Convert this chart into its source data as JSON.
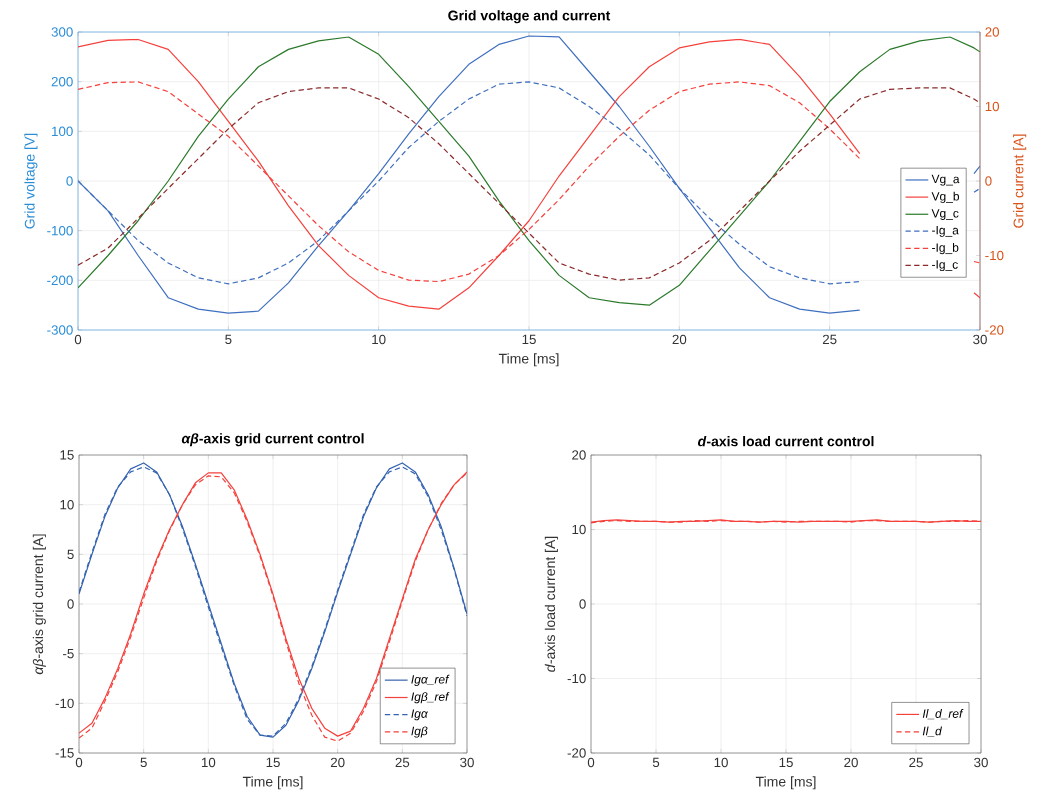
{
  "chart_data": [
    {
      "type": "line",
      "title": "Grid voltage and current",
      "xlabel": "Time [ms]",
      "ylabel": "Grid voltage [V]",
      "y2label": "Grid current [A]",
      "x": [
        0,
        1,
        2,
        3,
        4,
        5,
        6,
        7,
        8,
        9,
        10,
        11,
        12,
        13,
        14,
        15,
        16,
        17,
        18,
        19,
        20,
        21,
        22,
        23,
        24,
        25,
        26,
        27,
        28,
        29,
        29.8,
        30
      ],
      "series": [
        {
          "name": "Vg_a",
          "color": "#3f6fbf",
          "values": [
            0,
            -60,
            -150,
            -235,
            -258,
            -266,
            -262,
            -205,
            -130,
            -60,
            15,
            95,
            170,
            235,
            275,
            292,
            290,
            220,
            150,
            70,
            -15,
            -95,
            -175,
            -235,
            -258,
            -266,
            -260,
            null,
            null,
            null,
            15,
            30
          ]
        },
        {
          "name": "Vg_b",
          "color": "#f5413c",
          "values": [
            270,
            283,
            285,
            265,
            200,
            120,
            40,
            -50,
            -130,
            -190,
            -235,
            -252,
            -258,
            -215,
            -150,
            -80,
            10,
            90,
            170,
            230,
            268,
            280,
            285,
            275,
            210,
            135,
            55,
            null,
            null,
            null,
            -225,
            -235
          ]
        },
        {
          "name": "Vg_c",
          "color": "#2b7a2b",
          "values": [
            -215,
            -150,
            -80,
            0,
            90,
            165,
            230,
            265,
            282,
            290,
            255,
            190,
            120,
            50,
            -40,
            -120,
            -190,
            -235,
            -245,
            -250,
            -210,
            -140,
            -70,
            0,
            80,
            160,
            220,
            265,
            282,
            290,
            268,
            260
          ]
        },
        {
          "name": "-Ig_a",
          "color": "#3f6fbf",
          "line_style": "dashed",
          "axis": "y2",
          "values": [
            0,
            -4,
            -8,
            -11,
            -13,
            -13.8,
            -13,
            -11,
            -8,
            -4,
            0,
            4.5,
            8,
            11,
            13,
            13.3,
            12.5,
            10,
            7,
            3.5,
            -1,
            -5,
            -8.5,
            -11.5,
            -13,
            -13.8,
            -13.5,
            null,
            null,
            null,
            -1.5,
            -1
          ]
        },
        {
          "name": "-Ig_b",
          "color": "#f5413c",
          "line_style": "dashed",
          "axis": "y2",
          "values": [
            12.3,
            13.2,
            13.3,
            12,
            9,
            6,
            2,
            -2,
            -6,
            -9.5,
            -12,
            -13.3,
            -13.5,
            -12.5,
            -10,
            -6.5,
            -2.5,
            2,
            6,
            9.5,
            12,
            13,
            13.3,
            12.8,
            10.5,
            7,
            3,
            null,
            null,
            null,
            -10.8,
            -11
          ]
        },
        {
          "name": "-Ig_c",
          "color": "#8b2a2a",
          "line_style": "dashed",
          "axis": "y2",
          "values": [
            -11.3,
            -9,
            -5,
            -1,
            3,
            7,
            10.5,
            12,
            12.5,
            12.5,
            11,
            8.5,
            5,
            1,
            -3,
            -7,
            -11,
            -12.5,
            -13.3,
            -13,
            -11,
            -8,
            -4,
            0,
            4,
            7.5,
            11,
            12.3,
            12.5,
            12.5,
            11,
            10.5
          ]
        }
      ],
      "xlim": [
        0,
        30
      ],
      "xticks": [
        0,
        5,
        10,
        15,
        20,
        25,
        30
      ],
      "ylim": [
        -300,
        300
      ],
      "yticks": [
        -300,
        -200,
        -100,
        0,
        100,
        200,
        300
      ],
      "y2lim": [
        -20,
        20
      ],
      "y2ticks": [
        -20,
        -10,
        0,
        10,
        20
      ],
      "grid": true,
      "legend": "right"
    },
    {
      "type": "line",
      "title": "*αβ*-axis grid current control",
      "xlabel": "Time [ms]",
      "ylabel": "*αβ*-axis grid current [A]",
      "x": [
        0,
        1,
        2,
        3,
        4,
        5,
        6,
        7,
        8,
        9,
        10,
        11,
        12,
        13,
        14,
        15,
        16,
        17,
        18,
        19,
        20,
        21,
        22,
        23,
        24,
        25,
        26,
        27,
        28,
        29,
        30
      ],
      "series": [
        {
          "name": "Igα_ref",
          "color": "#3563b0",
          "values": [
            1,
            5,
            8.8,
            11.7,
            13.6,
            14.2,
            13.3,
            11,
            7.8,
            4,
            0,
            -4,
            -8,
            -11.3,
            -13.2,
            -13.4,
            -12.2,
            -9.7,
            -6.5,
            -2.8,
            1.2,
            5,
            8.8,
            11.7,
            13.6,
            14.2,
            13.3,
            11,
            7.8,
            3.6,
            -1
          ]
        },
        {
          "name": "Igβ_ref",
          "color": "#f5413c",
          "values": [
            -13,
            -12,
            -9.5,
            -6.5,
            -3,
            1,
            4.5,
            7.5,
            10,
            12.2,
            13.2,
            13.2,
            11.5,
            8.5,
            5,
            1,
            -3.5,
            -7.5,
            -10.5,
            -12.5,
            -13.3,
            -12.8,
            -10.5,
            -7.5,
            -3.5,
            0.5,
            4.5,
            7.5,
            10,
            12,
            13.3
          ]
        },
        {
          "name": "Igα",
          "color": "#3563b0",
          "line_style": "dashed",
          "values": [
            1.2,
            5.2,
            9,
            11.8,
            13.3,
            13.8,
            13.2,
            11,
            7.6,
            3.8,
            -0.3,
            -4.3,
            -8.2,
            -11.6,
            -13.2,
            -13.3,
            -12,
            -9.5,
            -6.3,
            -2.6,
            1.4,
            5.2,
            9,
            11.8,
            13.3,
            13.8,
            13.1,
            10.8,
            7.5,
            3.5,
            -1.2
          ]
        },
        {
          "name": "Igβ",
          "color": "#f5413c",
          "line_style": "dashed",
          "values": [
            -13.5,
            -12.5,
            -9.8,
            -6.8,
            -3.3,
            0.6,
            4.3,
            7.4,
            10,
            12,
            12.9,
            12.8,
            11.2,
            8.3,
            4.8,
            0.8,
            -3.8,
            -8,
            -11.2,
            -13.4,
            -13.8,
            -13,
            -10.8,
            -7.8,
            -3.8,
            0.3,
            4.3,
            7.5,
            10.1,
            12,
            13.2
          ]
        }
      ],
      "xlim": [
        0,
        30
      ],
      "xticks": [
        0,
        5,
        10,
        15,
        20,
        25,
        30
      ],
      "ylim": [
        -15,
        15
      ],
      "yticks": [
        -15,
        -10,
        -5,
        0,
        5,
        10,
        15
      ],
      "grid": true,
      "legend": "bottom right"
    },
    {
      "type": "line",
      "title": "*d*-axis load current control",
      "xlabel": "Time [ms]",
      "ylabel": "*d*-axis load current [A]",
      "x": [
        0,
        1,
        2,
        3,
        4,
        5,
        6,
        7,
        8,
        9,
        10,
        11,
        12,
        13,
        14,
        15,
        16,
        17,
        18,
        19,
        20,
        21,
        22,
        23,
        24,
        25,
        26,
        27,
        28,
        29,
        30
      ],
      "series": [
        {
          "name": "Il_d_ref",
          "color": "#f5413c",
          "values": [
            11,
            11.2,
            11.3,
            11.2,
            11.1,
            11.1,
            11,
            11.1,
            11.1,
            11.2,
            11.3,
            11.1,
            11.1,
            11,
            11.1,
            11.1,
            11,
            11.1,
            11.1,
            11.1,
            11.1,
            11.2,
            11.3,
            11.1,
            11.1,
            11.1,
            11,
            11.1,
            11.2,
            11.1,
            11.1
          ]
        },
        {
          "name": "Il_d",
          "color": "#f5413c",
          "line_style": "dashed",
          "values": [
            10.9,
            11.1,
            11.2,
            11.1,
            11.1,
            11.1,
            11,
            11,
            11.2,
            11.1,
            11.2,
            11.1,
            11.1,
            11,
            11.1,
            11,
            11.1,
            11.1,
            11.1,
            11.1,
            11,
            11.2,
            11.2,
            11.1,
            11.1,
            11.1,
            11,
            11.1,
            11.1,
            11.2,
            11.1
          ]
        }
      ],
      "xlim": [
        0,
        30
      ],
      "xticks": [
        0,
        5,
        10,
        15,
        20,
        25,
        30
      ],
      "ylim": [
        -20,
        20
      ],
      "yticks": [
        -20,
        -10,
        0,
        10,
        20
      ],
      "grid": true,
      "legend": "bottom right"
    }
  ]
}
